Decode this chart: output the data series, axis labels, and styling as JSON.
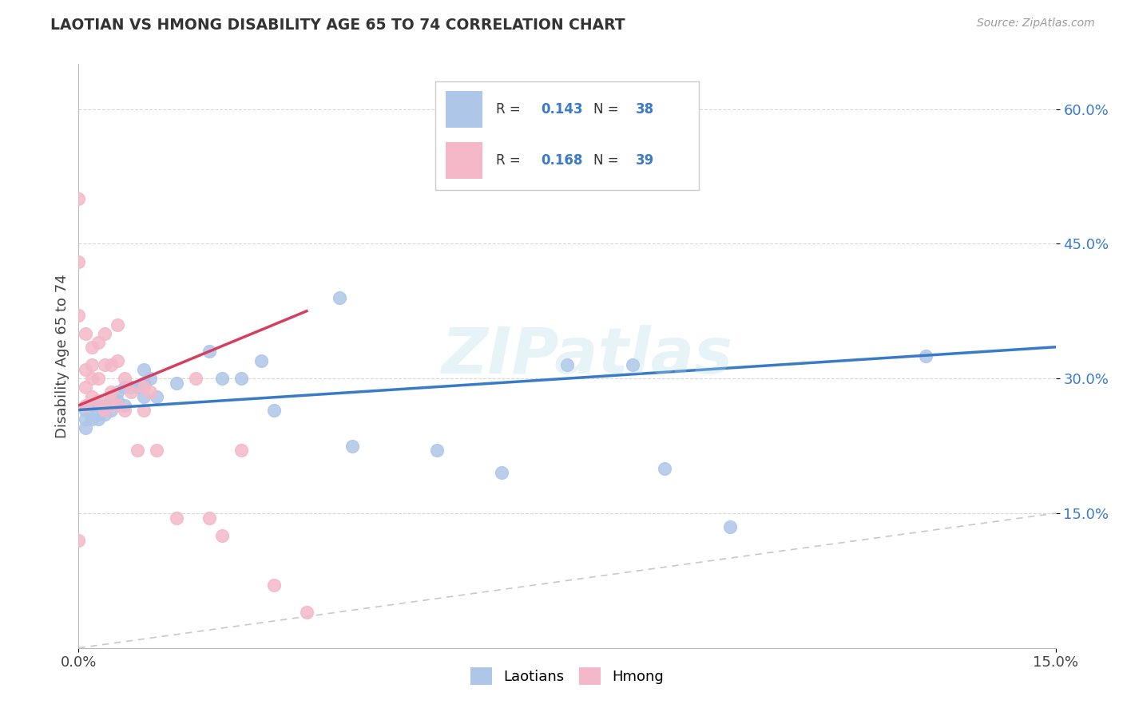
{
  "title": "LAOTIAN VS HMONG DISABILITY AGE 65 TO 74 CORRELATION CHART",
  "source": "Source: ZipAtlas.com",
  "ylabel": "Disability Age 65 to 74",
  "xlim": [
    0.0,
    0.15
  ],
  "ylim": [
    0.0,
    0.65
  ],
  "r_laotian": "0.143",
  "n_laotian": "38",
  "r_hmong": "0.168",
  "n_hmong": "39",
  "laotian_color": "#aec6e8",
  "hmong_color": "#f4b8c8",
  "trendline_laotian_color": "#3a7bc8",
  "trendline_hmong_color": "#d44060",
  "trendline_dashed_color": "#c8c8c8",
  "watermark": "ZIPatlas",
  "laotian_x": [
    0.001,
    0.001,
    0.001,
    0.002,
    0.002,
    0.003,
    0.003,
    0.003,
    0.004,
    0.004,
    0.005,
    0.005,
    0.006,
    0.006,
    0.007,
    0.007,
    0.008,
    0.009,
    0.01,
    0.01,
    0.01,
    0.011,
    0.012,
    0.015,
    0.02,
    0.022,
    0.025,
    0.028,
    0.03,
    0.04,
    0.042,
    0.055,
    0.065,
    0.075,
    0.085,
    0.09,
    0.1,
    0.13
  ],
  "laotian_y": [
    0.265,
    0.255,
    0.245,
    0.27,
    0.255,
    0.27,
    0.26,
    0.255,
    0.27,
    0.26,
    0.28,
    0.265,
    0.285,
    0.275,
    0.29,
    0.27,
    0.29,
    0.29,
    0.31,
    0.295,
    0.28,
    0.3,
    0.28,
    0.295,
    0.33,
    0.3,
    0.3,
    0.32,
    0.265,
    0.39,
    0.225,
    0.22,
    0.195,
    0.315,
    0.315,
    0.2,
    0.135,
    0.325
  ],
  "hmong_x": [
    0.0,
    0.0,
    0.0,
    0.0,
    0.001,
    0.001,
    0.001,
    0.001,
    0.002,
    0.002,
    0.002,
    0.002,
    0.003,
    0.003,
    0.003,
    0.004,
    0.004,
    0.004,
    0.005,
    0.005,
    0.005,
    0.006,
    0.006,
    0.006,
    0.007,
    0.007,
    0.008,
    0.009,
    0.01,
    0.01,
    0.011,
    0.012,
    0.015,
    0.018,
    0.02,
    0.022,
    0.025,
    0.03,
    0.035
  ],
  "hmong_y": [
    0.5,
    0.43,
    0.37,
    0.12,
    0.35,
    0.31,
    0.29,
    0.27,
    0.335,
    0.315,
    0.3,
    0.28,
    0.34,
    0.3,
    0.275,
    0.35,
    0.315,
    0.265,
    0.315,
    0.285,
    0.275,
    0.36,
    0.32,
    0.27,
    0.3,
    0.265,
    0.285,
    0.22,
    0.29,
    0.265,
    0.285,
    0.22,
    0.145,
    0.3,
    0.145,
    0.125,
    0.22,
    0.07,
    0.04
  ],
  "trend_laotian_x0": 0.0,
  "trend_laotian_y0": 0.265,
  "trend_laotian_x1": 0.15,
  "trend_laotian_y1": 0.335,
  "trend_hmong_x0": 0.0,
  "trend_hmong_y0": 0.27,
  "trend_hmong_x1": 0.035,
  "trend_hmong_y1": 0.375
}
